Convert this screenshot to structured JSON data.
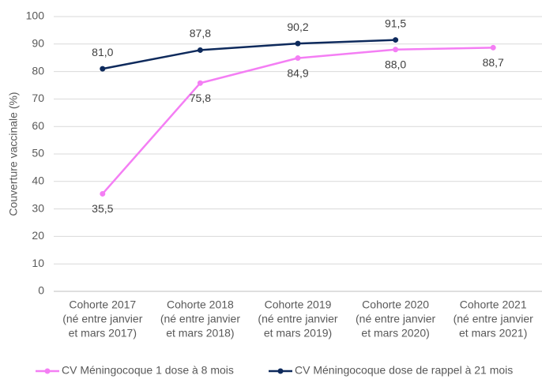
{
  "chart_data": {
    "type": "line",
    "ylabel": "Couverture vaccinale (%)",
    "categories": [
      [
        "Cohorte 2017",
        "(né entre janvier",
        "et mars 2017)"
      ],
      [
        "Cohorte 2018",
        "(né entre janvier",
        "et mars 2018)"
      ],
      [
        "Cohorte 2019",
        "(né entre janvier",
        "et mars 2019)"
      ],
      [
        "Cohorte 2020",
        "(né entre janvier",
        "et mars 2020)"
      ],
      [
        "Cohorte 2021",
        "(né entre janvier",
        "et mars 2021)"
      ]
    ],
    "series": [
      {
        "name": "CV Méningocoque 1 dose à 8 mois",
        "color": "#f47ef4",
        "label_position": "below",
        "values": [
          35.5,
          75.8,
          84.9,
          88.0,
          88.7
        ],
        "value_labels": [
          "35,5",
          "75,8",
          "84,9",
          "88,0",
          "88,7"
        ]
      },
      {
        "name": "CV Méningocoque dose de rappel à 21 mois",
        "color": "#0e2a5c",
        "label_position": "above",
        "values": [
          81.0,
          87.8,
          90.2,
          91.5,
          null
        ],
        "value_labels": [
          "81,0",
          "87,8",
          "90,2",
          "91,5",
          null
        ]
      }
    ],
    "ylim": [
      0,
      100
    ],
    "yticks": [
      0,
      10,
      20,
      30,
      40,
      50,
      60,
      70,
      80,
      90,
      100
    ],
    "grid": true,
    "legend": "bottom"
  }
}
